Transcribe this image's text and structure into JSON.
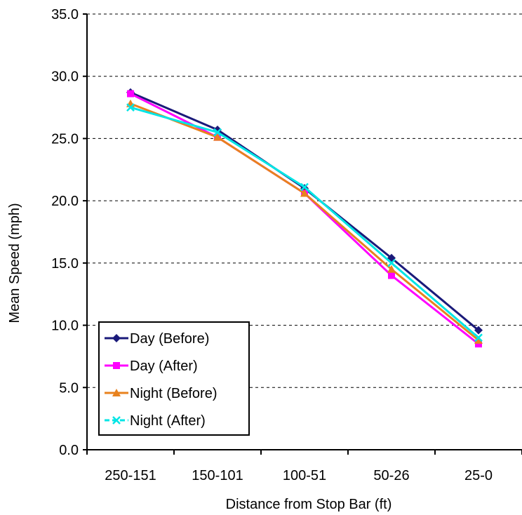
{
  "chart_data": {
    "type": "line",
    "title": "",
    "xlabel": "Distance from Stop Bar (ft)",
    "ylabel": "Mean Speed (mph)",
    "categories": [
      "250-151",
      "150-101",
      "100-51",
      "50-26",
      "25-0"
    ],
    "ylim": [
      0,
      35
    ],
    "yticks": [
      "0.0",
      "5.0",
      "10.0",
      "15.0",
      "20.0",
      "25.0",
      "30.0",
      "35.0"
    ],
    "grid": "horizontal dashed",
    "legend_position": "bottom-left",
    "series": [
      {
        "name": "Day (Before)",
        "color": "#1a1a7a",
        "marker": "diamond",
        "values": [
          28.7,
          25.7,
          21.0,
          15.4,
          9.6
        ]
      },
      {
        "name": "Day (After)",
        "color": "#ff00ff",
        "marker": "square",
        "values": [
          28.6,
          25.1,
          20.6,
          14.0,
          8.5
        ]
      },
      {
        "name": "Night (Before)",
        "color": "#e8821e",
        "marker": "triangle",
        "values": [
          27.8,
          25.1,
          20.6,
          14.5,
          8.8
        ]
      },
      {
        "name": "Night (After)",
        "color": "#00e5e5",
        "marker": "x",
        "values": [
          27.5,
          25.5,
          21.1,
          15.0,
          9.0
        ]
      }
    ]
  }
}
